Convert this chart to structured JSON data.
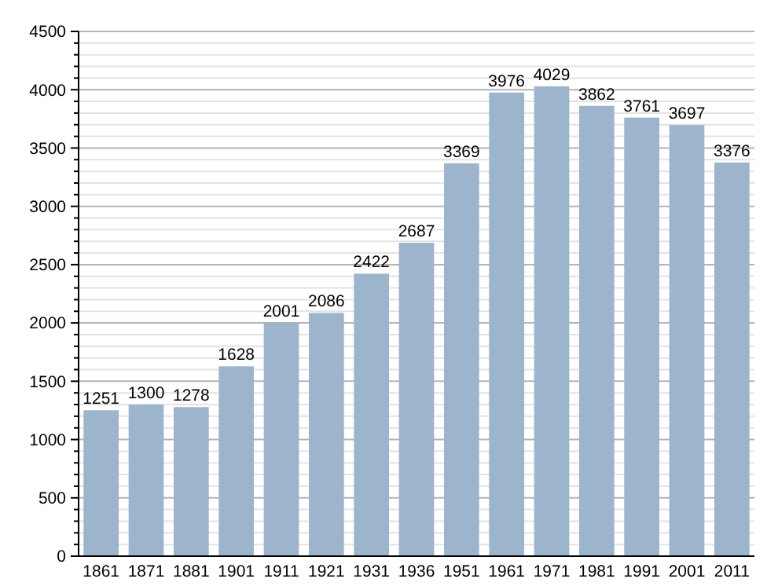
{
  "chart_data": {
    "type": "bar",
    "categories": [
      "1861",
      "1871",
      "1881",
      "1901",
      "1911",
      "1921",
      "1931",
      "1936",
      "1951",
      "1961",
      "1971",
      "1981",
      "1991",
      "2001",
      "2011"
    ],
    "values": [
      1251,
      1300,
      1278,
      1628,
      2001,
      2086,
      2422,
      2687,
      3369,
      3976,
      4029,
      3862,
      3761,
      3697,
      3376
    ],
    "color": "#9db4cd",
    "data_labels": true,
    "grid": "y",
    "ylim": [
      0,
      4500
    ],
    "yticks": [
      0,
      {
        "value": 100,
        "label": null
      },
      {
        "value": 200,
        "label": null
      },
      {
        "value": 300,
        "label": null
      },
      {
        "value": 400,
        "label": null
      },
      500,
      {
        "value": 600,
        "label": null
      },
      {
        "value": 700,
        "label": null
      },
      {
        "value": 800,
        "label": null
      },
      {
        "value": 900,
        "label": null
      },
      1000,
      {
        "value": 1100,
        "label": null
      },
      {
        "value": 1200,
        "label": null
      },
      {
        "value": 1300,
        "label": null
      },
      {
        "value": 1400,
        "label": null
      },
      1500,
      {
        "value": 1600,
        "label": null
      },
      {
        "value": 1700,
        "label": null
      },
      {
        "value": 1800,
        "label": null
      },
      {
        "value": 1900,
        "label": null
      },
      2000,
      {
        "value": 2100,
        "label": null
      },
      {
        "value": 2200,
        "label": null
      },
      {
        "value": 2300,
        "label": null
      },
      {
        "value": 2400,
        "label": null
      },
      2500,
      {
        "value": 2600,
        "label": null
      },
      {
        "value": 2700,
        "label": null
      },
      {
        "value": 2800,
        "label": null
      },
      {
        "value": 2900,
        "label": null
      },
      3000,
      {
        "value": 3100,
        "label": null
      },
      {
        "value": 3200,
        "label": null
      },
      {
        "value": 3300,
        "label": null
      },
      {
        "value": 3400,
        "label": null
      },
      3500,
      {
        "value": 3600,
        "label": null
      },
      {
        "value": 3700,
        "label": null
      },
      {
        "value": 3800,
        "label": null
      },
      {
        "value": 3900,
        "label": null
      },
      4000,
      {
        "value": 4100,
        "label": null
      },
      {
        "value": 4200,
        "label": null
      },
      {
        "value": 4300,
        "label": null
      },
      {
        "value": 4400,
        "label": null
      },
      4500
    ]
  }
}
